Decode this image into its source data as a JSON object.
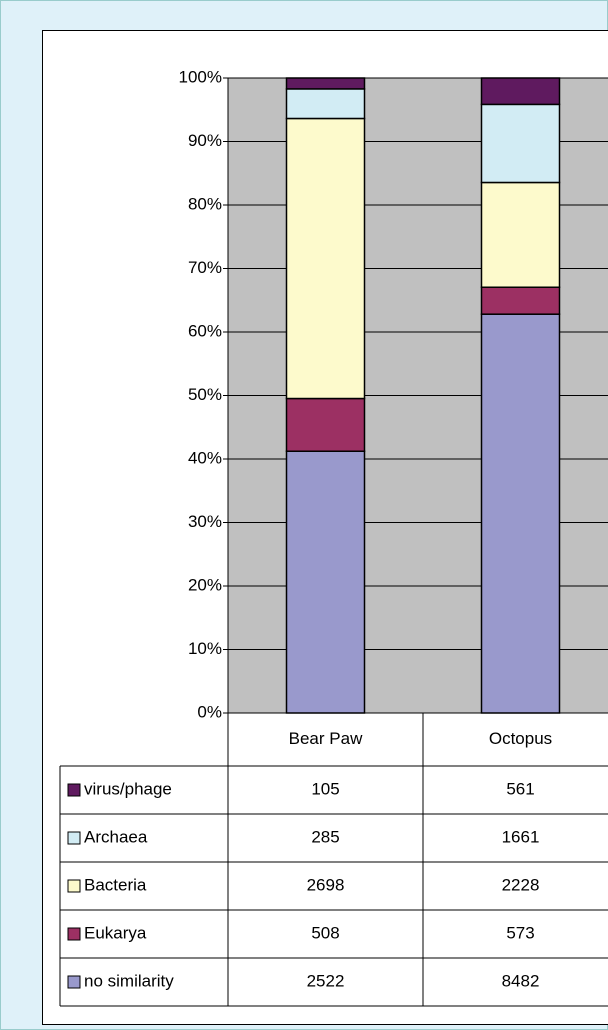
{
  "chart_data": {
    "type": "bar",
    "stacking": "percent",
    "categories": [
      "Bear Paw",
      "Octopus"
    ],
    "series": [
      {
        "name": "virus/phage",
        "color": "#5f1a5f",
        "values": [
          105,
          561
        ]
      },
      {
        "name": "Archaea",
        "color": "#d2ecf4",
        "values": [
          285,
          1661
        ]
      },
      {
        "name": "Bacteria",
        "color": "#fdfacc",
        "values": [
          2698,
          2228
        ]
      },
      {
        "name": "Eukarya",
        "color": "#9c3063",
        "values": [
          508,
          573
        ]
      },
      {
        "name": "no similarity",
        "color": "#9999cc",
        "values": [
          2522,
          8482
        ]
      }
    ],
    "ylim": [
      0,
      100
    ],
    "yticks": [
      {
        "value": 0,
        "label": "0%"
      },
      {
        "value": 10,
        "label": "10%"
      },
      {
        "value": 20,
        "label": "20%"
      },
      {
        "value": 30,
        "label": "30%"
      },
      {
        "value": 40,
        "label": "40%"
      },
      {
        "value": 50,
        "label": "50%"
      },
      {
        "value": 60,
        "label": "60%"
      },
      {
        "value": 70,
        "label": "70%"
      },
      {
        "value": 80,
        "label": "80%"
      },
      {
        "value": 90,
        "label": "90%"
      },
      {
        "value": 100,
        "label": "100%"
      }
    ],
    "grid": true,
    "data_table": true
  }
}
